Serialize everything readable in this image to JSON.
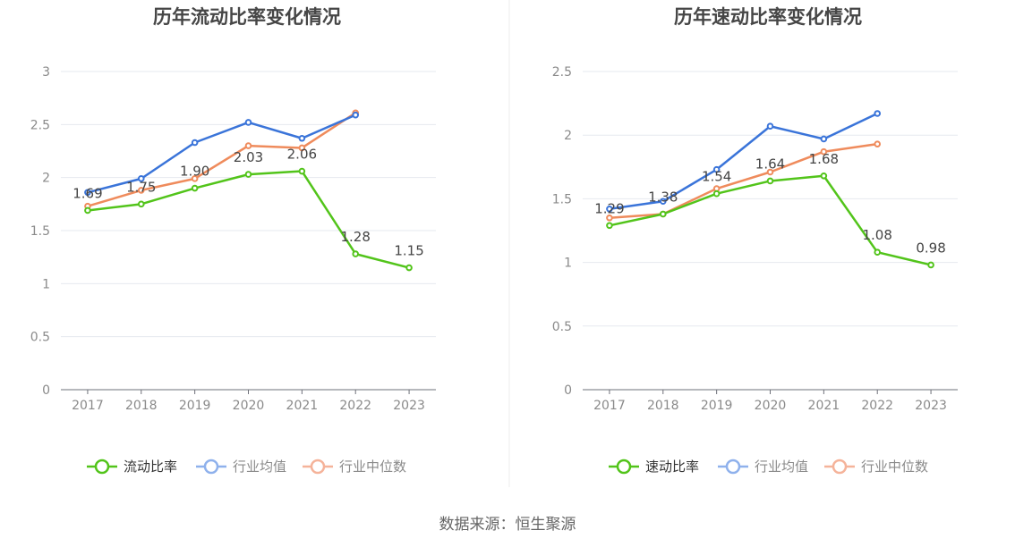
{
  "source": "数据来源：恒生聚源",
  "colors": {
    "primary": "#52c41a",
    "average": "#3a74d9",
    "median": "#ef8b5c",
    "legend_avg": "#8fb1ec",
    "legend_med": "#f5b39a",
    "grid": "#e6e9ef",
    "axis": "#6e7079"
  },
  "chart_data": [
    {
      "type": "line",
      "title": "历年流动比率变化情况",
      "categories": [
        "2017",
        "2018",
        "2019",
        "2020",
        "2021",
        "2022",
        "2023"
      ],
      "ylim": [
        0,
        3
      ],
      "yticks": [
        "0",
        "0.5",
        "1",
        "1.5",
        "2",
        "2.5",
        "3"
      ],
      "grid": true,
      "legend_position": "bottom",
      "series": [
        {
          "name": "流动比率",
          "values": [
            1.69,
            1.75,
            1.9,
            2.03,
            2.06,
            1.28,
            1.15
          ],
          "labels": [
            "1.69",
            "1.75",
            "1.90",
            "2.03",
            "2.06",
            "1.28",
            "1.15"
          ]
        },
        {
          "name": "行业均值",
          "values": [
            1.86,
            1.99,
            2.33,
            2.52,
            2.37,
            2.59,
            null
          ]
        },
        {
          "name": "行业中位数",
          "values": [
            1.73,
            1.88,
            1.99,
            2.3,
            2.28,
            2.61,
            null
          ]
        }
      ]
    },
    {
      "type": "line",
      "title": "历年速动比率变化情况",
      "categories": [
        "2017",
        "2018",
        "2019",
        "2020",
        "2021",
        "2022",
        "2023"
      ],
      "ylim": [
        0,
        2.5
      ],
      "yticks": [
        "0",
        "0.5",
        "1",
        "1.5",
        "2",
        "2.5"
      ],
      "grid": true,
      "legend_position": "bottom",
      "series": [
        {
          "name": "速动比率",
          "values": [
            1.29,
            1.38,
            1.54,
            1.64,
            1.68,
            1.08,
            0.98
          ],
          "labels": [
            "1.29",
            "1.38",
            "1.54",
            "1.64",
            "1.68",
            "1.08",
            "0.98"
          ]
        },
        {
          "name": "行业均值",
          "values": [
            1.42,
            1.48,
            1.73,
            2.07,
            1.97,
            2.17,
            null
          ]
        },
        {
          "name": "行业中位数",
          "values": [
            1.35,
            1.38,
            1.58,
            1.71,
            1.87,
            1.93,
            null
          ]
        }
      ]
    }
  ]
}
